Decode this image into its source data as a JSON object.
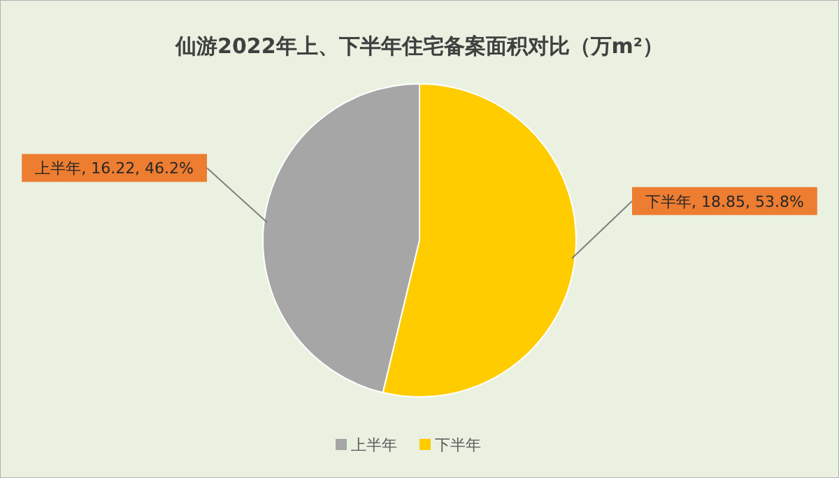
{
  "chart_data": {
    "type": "pie",
    "title": "仙游2022年上、下半年住宅备案面积对比（万m²）",
    "categories": [
      "上半年",
      "下半年"
    ],
    "values": [
      16.22,
      18.85
    ],
    "colors": [
      "#a6a6a6",
      "#ffcc00"
    ],
    "value_labels": [
      "上半年, 16.22, 46.2%",
      "下半年, 18.85, 53.8%"
    ],
    "legend": "bottom"
  }
}
